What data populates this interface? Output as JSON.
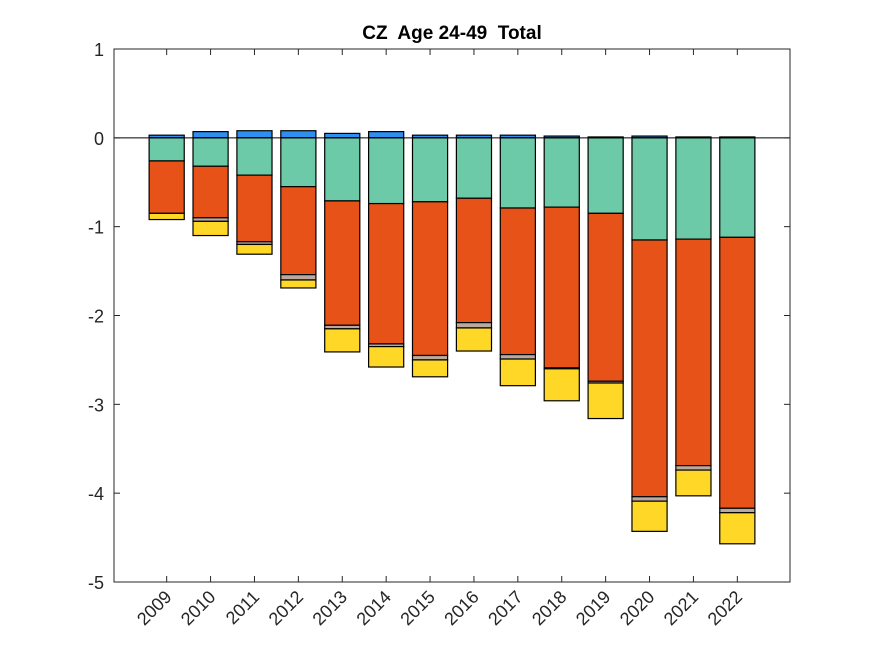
{
  "chart_data": {
    "type": "bar",
    "stacked": true,
    "title": "CZ  Age 24-49  Total",
    "xlabel": "",
    "ylabel": "",
    "categories": [
      "2009",
      "2010",
      "2011",
      "2012",
      "2013",
      "2014",
      "2015",
      "2016",
      "2017",
      "2018",
      "2019",
      "2020",
      "2021",
      "2022"
    ],
    "xlim": [
      2007.8,
      2023.2
    ],
    "ylim": [
      -5,
      1
    ],
    "yticks": [
      1,
      0,
      -1,
      -2,
      -3,
      -4,
      -5
    ],
    "ytick_labels": [
      "1",
      "0",
      "-1",
      "-2",
      "-3",
      "-4",
      "-5"
    ],
    "grid": false,
    "legend": "none",
    "series": [
      {
        "name": "blue",
        "color": "#2e8ff0",
        "values": [
          0.03,
          0.07,
          0.08,
          0.08,
          0.05,
          0.07,
          0.03,
          0.03,
          0.03,
          0.02,
          0.01,
          0.02,
          0.01,
          0.01
        ]
      },
      {
        "name": "teal",
        "color": "#6ccaa8",
        "values": [
          -0.26,
          -0.32,
          -0.42,
          -0.55,
          -0.71,
          -0.74,
          -0.72,
          -0.68,
          -0.79,
          -0.78,
          -0.85,
          -1.15,
          -1.14,
          -1.12
        ]
      },
      {
        "name": "orange",
        "color": "#e65218",
        "values": [
          -0.59,
          -0.58,
          -0.75,
          -0.99,
          -1.4,
          -1.58,
          -1.73,
          -1.4,
          -1.65,
          -1.81,
          -1.89,
          -2.89,
          -2.55,
          -3.05
        ]
      },
      {
        "name": "gray",
        "color": "#b9a9a0",
        "values": [
          0,
          -0.04,
          -0.03,
          -0.06,
          -0.04,
          -0.03,
          -0.05,
          -0.06,
          -0.05,
          -0.01,
          -0.02,
          -0.05,
          -0.05,
          -0.05
        ]
      },
      {
        "name": "yellow",
        "color": "#ffd726",
        "values": [
          -0.07,
          -0.16,
          -0.11,
          -0.09,
          -0.26,
          -0.23,
          -0.19,
          -0.26,
          -0.3,
          -0.36,
          -0.4,
          -0.34,
          -0.29,
          -0.35
        ]
      }
    ]
  }
}
